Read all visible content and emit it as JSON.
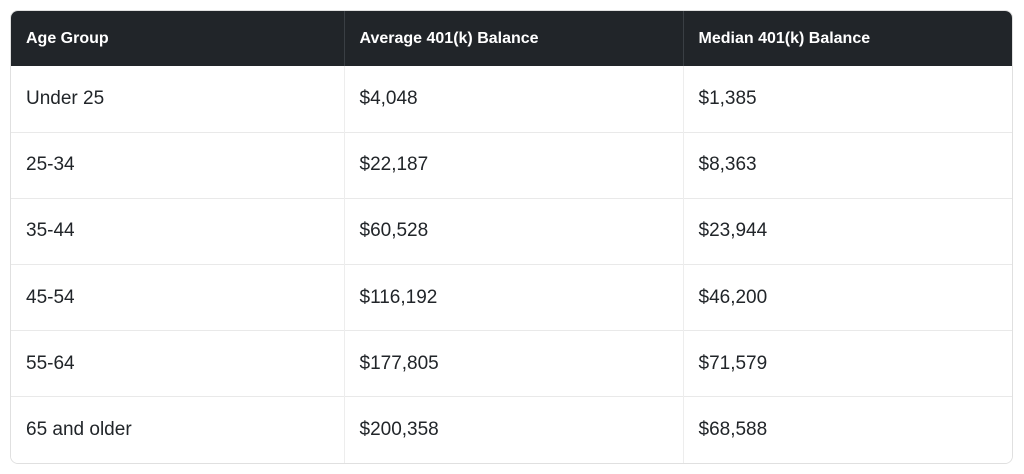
{
  "colors": {
    "header_background": "#212529",
    "header_text": "#ffffff",
    "body_text": "#212529",
    "row_divider": "#e9e9e9",
    "column_divider": "#ededed",
    "outer_border": "#e0e0e0",
    "page_background": "#ffffff"
  },
  "chart_data": {
    "type": "table",
    "title": "",
    "columns": [
      "Age Group",
      "Average 401(k) Balance",
      "Median 401(k) Balance"
    ],
    "rows": [
      [
        "Under 25",
        "$4,048",
        "$1,385"
      ],
      [
        "25-34",
        "$22,187",
        "$8,363"
      ],
      [
        "35-44",
        "$60,528",
        "$23,944"
      ],
      [
        "45-54",
        "$116,192",
        "$46,200"
      ],
      [
        "55-64",
        "$177,805",
        "$71,579"
      ],
      [
        "65 and older",
        "$200,358",
        "$68,588"
      ]
    ],
    "categories": [
      "Under 25",
      "25-34",
      "35-44",
      "45-54",
      "55-64",
      "65 and older"
    ],
    "series": [
      {
        "name": "Average 401(k) Balance",
        "values": [
          4048,
          22187,
          60528,
          116192,
          177805,
          200358
        ]
      },
      {
        "name": "Median 401(k) Balance",
        "values": [
          1385,
          8363,
          23944,
          46200,
          71579,
          68588
        ]
      }
    ],
    "layout": {
      "grid": "row-and-column-dividers",
      "header_style": "dark"
    }
  }
}
